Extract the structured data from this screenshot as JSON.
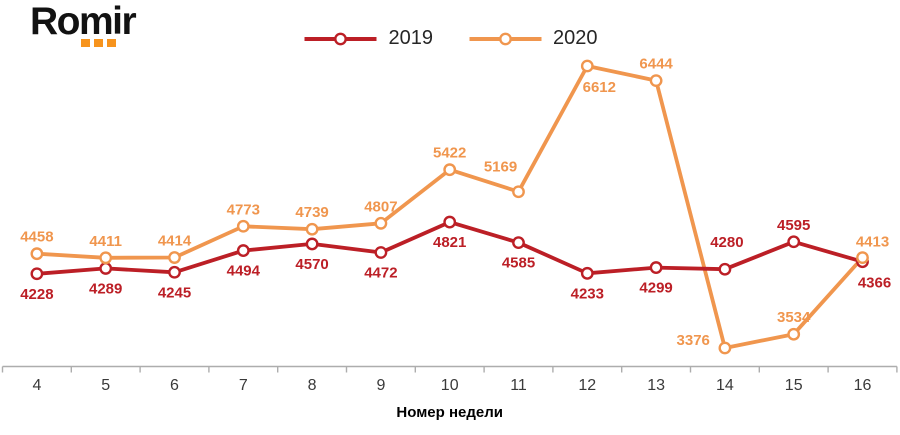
{
  "brand": {
    "name": "Romir"
  },
  "legend": {
    "items": [
      {
        "label": "2019",
        "color": "#BC1F26"
      },
      {
        "label": "2020",
        "color": "#F0964E"
      }
    ]
  },
  "chart_data": {
    "type": "line",
    "title": "",
    "xlabel": "Номер недели",
    "ylabel": "",
    "x": [
      4,
      5,
      6,
      7,
      8,
      9,
      10,
      11,
      12,
      13,
      14,
      15,
      16
    ],
    "ylim": [
      3376,
      6612
    ],
    "grid": false,
    "legend_position": "top-center",
    "marker": "open-circle",
    "series": [
      {
        "name": "2019",
        "color": "#BC1F26",
        "values": [
          4228,
          4289,
          4245,
          4494,
          4570,
          4472,
          4821,
          4585,
          4233,
          4299,
          4280,
          4595,
          4366
        ],
        "label_placements": [
          "below",
          "below",
          "below",
          "below",
          "below",
          "below",
          "below",
          "below",
          "below",
          "below",
          "above-high",
          "above",
          "below-right"
        ]
      },
      {
        "name": "2020",
        "color": "#F0964E",
        "values": [
          4458,
          4411,
          4414,
          4773,
          4739,
          4807,
          5422,
          5169,
          6612,
          6444,
          3376,
          3534,
          4413
        ],
        "label_placements": [
          "above",
          "above",
          "above",
          "above",
          "above",
          "above",
          "above",
          "above-left",
          "below-right",
          "above",
          "left",
          "above",
          "above-right"
        ]
      }
    ]
  },
  "colors": {
    "background": "#FFFFFF",
    "axis": "#ADADAD",
    "tick_label": "#3A3A3A",
    "axis_title": "#000000",
    "logo_text": "#121212",
    "logo_accent": "#F7941D"
  }
}
